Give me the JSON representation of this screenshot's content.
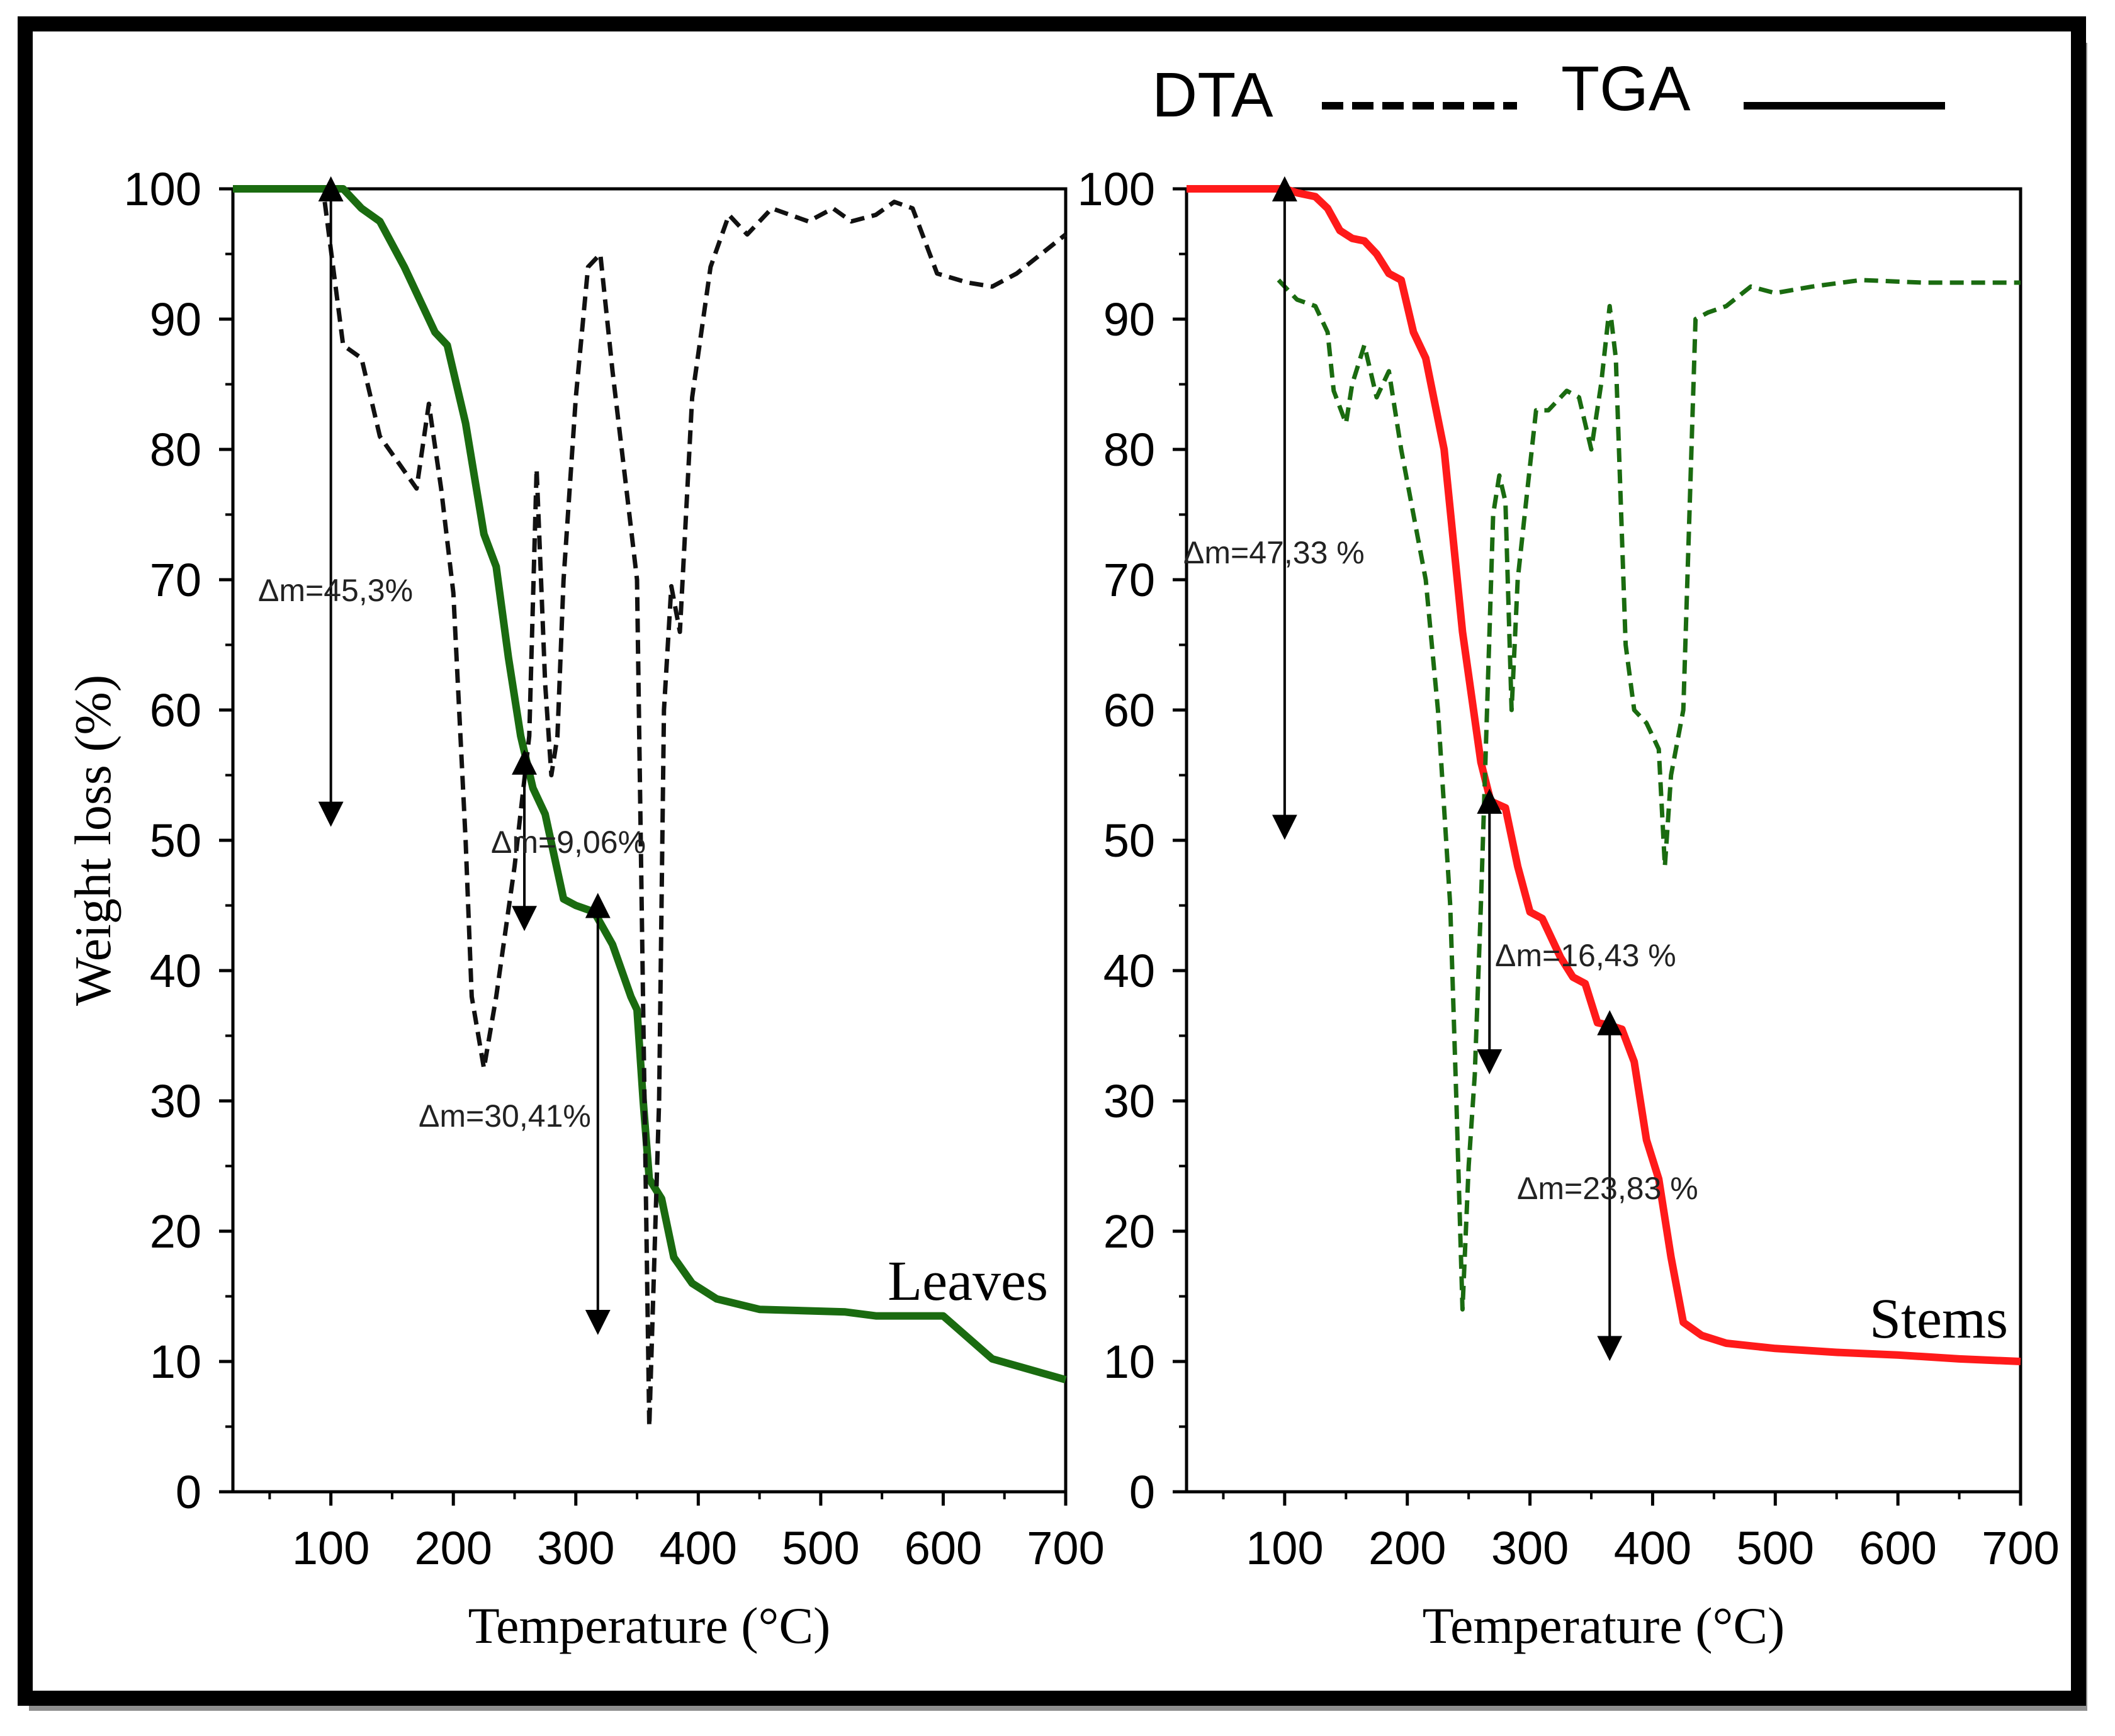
{
  "legend": {
    "dta_label": "DTA",
    "tga_label": "TGA"
  },
  "chart_data": [
    {
      "type": "line",
      "panel": "left",
      "title": "Leaves",
      "xlabel": "Temperature (°C)",
      "ylabel": "Weight loss (%)",
      "xlim": [
        20,
        700
      ],
      "ylim": [
        0,
        100
      ],
      "x_ticks": [
        "100",
        "200",
        "300",
        "400",
        "500",
        "600",
        "700"
      ],
      "y_ticks": [
        "0",
        "10",
        "20",
        "30",
        "40",
        "50",
        "60",
        "70",
        "80",
        "90",
        "100"
      ],
      "grid": false,
      "series": [
        {
          "name": "TGA",
          "style": "solid",
          "color": "#1a6b10",
          "points": [
            [
              20,
              100
            ],
            [
              110,
              100
            ],
            [
              125,
              98.5
            ],
            [
              140,
              97.5
            ],
            [
              160,
              94
            ],
            [
              185,
              89
            ],
            [
              195,
              88
            ],
            [
              210,
              82
            ],
            [
              225,
              73.5
            ],
            [
              235,
              71
            ],
            [
              245,
              64
            ],
            [
              255,
              58
            ],
            [
              265,
              54
            ],
            [
              275,
              52
            ],
            [
              290,
              45.5
            ],
            [
              300,
              45
            ],
            [
              315,
              44.5
            ],
            [
              330,
              42
            ],
            [
              345,
              38
            ],
            [
              350,
              37
            ],
            [
              355,
              30
            ],
            [
              360,
              24
            ],
            [
              370,
              22.5
            ],
            [
              380,
              18
            ],
            [
              395,
              16
            ],
            [
              415,
              14.8
            ],
            [
              450,
              14
            ],
            [
              520,
              13.8
            ],
            [
              545,
              13.5
            ],
            [
              600,
              13.5
            ],
            [
              640,
              10.2
            ],
            [
              700,
              8.6
            ]
          ]
        },
        {
          "name": "DTA",
          "style": "dashed",
          "color": "#111111",
          "points": [
            [
              95,
              99
            ],
            [
              110,
              88
            ],
            [
              125,
              87
            ],
            [
              140,
              81
            ],
            [
              155,
              79
            ],
            [
              170,
              77
            ],
            [
              180,
              83.5
            ],
            [
              190,
              77
            ],
            [
              200,
              69
            ],
            [
              210,
              50
            ],
            [
              215,
              38
            ],
            [
              225,
              32.5
            ],
            [
              235,
              38
            ],
            [
              250,
              48
            ],
            [
              262,
              58
            ],
            [
              268,
              78.5
            ],
            [
              275,
              62
            ],
            [
              280,
              55
            ],
            [
              285,
              58
            ],
            [
              290,
              70
            ],
            [
              300,
              84
            ],
            [
              310,
              94
            ],
            [
              320,
              95
            ],
            [
              330,
              86
            ],
            [
              340,
              78
            ],
            [
              350,
              70
            ],
            [
              355,
              37
            ],
            [
              360,
              5
            ],
            [
              368,
              30
            ],
            [
              372,
              60
            ],
            [
              378,
              69.5
            ],
            [
              385,
              66
            ],
            [
              395,
              84
            ],
            [
              410,
              94
            ],
            [
              425,
              98
            ],
            [
              440,
              96.5
            ],
            [
              460,
              98.5
            ],
            [
              490,
              97.5
            ],
            [
              510,
              98.5
            ],
            [
              525,
              97.5
            ],
            [
              545,
              98
            ],
            [
              560,
              99
            ],
            [
              575,
              98.5
            ],
            [
              595,
              93.5
            ],
            [
              620,
              92.8
            ],
            [
              640,
              92.5
            ],
            [
              660,
              93.5
            ],
            [
              700,
              96.5
            ]
          ]
        }
      ],
      "annotations": [
        {
          "text": "Δm=45,3%",
          "x": 100,
          "y_from": 100,
          "y_to": 52
        },
        {
          "text": "Δm=9,06%",
          "x": 258,
          "y_from": 56,
          "y_to": 44
        },
        {
          "text": "Δm=30,41%",
          "x": 318,
          "y_from": 45,
          "y_to": 13
        }
      ]
    },
    {
      "type": "line",
      "panel": "right",
      "title": "Stems",
      "xlabel": "Temperature (°C)",
      "ylabel": "",
      "xlim": [
        20,
        700
      ],
      "ylim": [
        0,
        100
      ],
      "x_ticks": [
        "100",
        "200",
        "300",
        "400",
        "500",
        "600",
        "700"
      ],
      "y_ticks": [
        "0",
        "10",
        "20",
        "30",
        "40",
        "50",
        "60",
        "70",
        "80",
        "90",
        "100"
      ],
      "grid": false,
      "series": [
        {
          "name": "TGA",
          "style": "solid",
          "color": "#ff1a1a",
          "points": [
            [
              20,
              100
            ],
            [
              100,
              100
            ],
            [
              110,
              99.7
            ],
            [
              125,
              99.4
            ],
            [
              135,
              98.5
            ],
            [
              145,
              96.8
            ],
            [
              155,
              96.2
            ],
            [
              165,
              96
            ],
            [
              175,
              95
            ],
            [
              185,
              93.5
            ],
            [
              195,
              93
            ],
            [
              205,
              89
            ],
            [
              215,
              87
            ],
            [
              230,
              80
            ],
            [
              245,
              66
            ],
            [
              260,
              56
            ],
            [
              268,
              53
            ],
            [
              280,
              52.5
            ],
            [
              290,
              48
            ],
            [
              300,
              44.5
            ],
            [
              310,
              44
            ],
            [
              325,
              41
            ],
            [
              335,
              39.5
            ],
            [
              345,
              39
            ],
            [
              355,
              36
            ],
            [
              365,
              35.8
            ],
            [
              375,
              35.5
            ],
            [
              385,
              33
            ],
            [
              395,
              27
            ],
            [
              405,
              24
            ],
            [
              415,
              18
            ],
            [
              425,
              13
            ],
            [
              440,
              12
            ],
            [
              460,
              11.4
            ],
            [
              480,
              11.2
            ],
            [
              500,
              11
            ],
            [
              550,
              10.7
            ],
            [
              600,
              10.5
            ],
            [
              650,
              10.2
            ],
            [
              700,
              10
            ]
          ]
        },
        {
          "name": "DTA",
          "style": "dashed",
          "color": "#1a6b10",
          "points": [
            [
              95,
              93
            ],
            [
              110,
              91.5
            ],
            [
              125,
              91
            ],
            [
              135,
              89
            ],
            [
              140,
              84.5
            ],
            [
              150,
              82
            ],
            [
              155,
              85
            ],
            [
              165,
              88
            ],
            [
              175,
              84
            ],
            [
              185,
              86
            ],
            [
              195,
              80
            ],
            [
              205,
              75
            ],
            [
              215,
              70
            ],
            [
              225,
              60
            ],
            [
              235,
              45
            ],
            [
              240,
              30
            ],
            [
              245,
              14
            ],
            [
              250,
              25
            ],
            [
              255,
              32
            ],
            [
              260,
              45
            ],
            [
              265,
              60
            ],
            [
              270,
              75
            ],
            [
              275,
              78
            ],
            [
              280,
              76
            ],
            [
              285,
              60
            ],
            [
              290,
              70
            ],
            [
              298,
              77
            ],
            [
              305,
              83
            ],
            [
              315,
              83
            ],
            [
              330,
              84.5
            ],
            [
              340,
              84
            ],
            [
              350,
              80
            ],
            [
              358,
              85
            ],
            [
              365,
              91
            ],
            [
              370,
              87
            ],
            [
              378,
              65
            ],
            [
              385,
              60
            ],
            [
              395,
              59
            ],
            [
              405,
              57
            ],
            [
              410,
              48
            ],
            [
              415,
              55
            ],
            [
              425,
              60
            ],
            [
              435,
              90
            ],
            [
              445,
              90.5
            ],
            [
              460,
              91
            ],
            [
              480,
              92.5
            ],
            [
              500,
              92
            ],
            [
              530,
              92.5
            ],
            [
              570,
              93
            ],
            [
              620,
              92.8
            ],
            [
              700,
              92.8
            ]
          ]
        }
      ],
      "annotations": [
        {
          "text": "Δm=47,33 %",
          "x": 100,
          "y_from": 100,
          "y_to": 51
        },
        {
          "text": "Δm=16,43 %",
          "x": 267,
          "y_from": 53,
          "y_to": 33
        },
        {
          "text": "Δm=23,83 %",
          "x": 365,
          "y_from": 36,
          "y_to": 11
        }
      ]
    }
  ]
}
